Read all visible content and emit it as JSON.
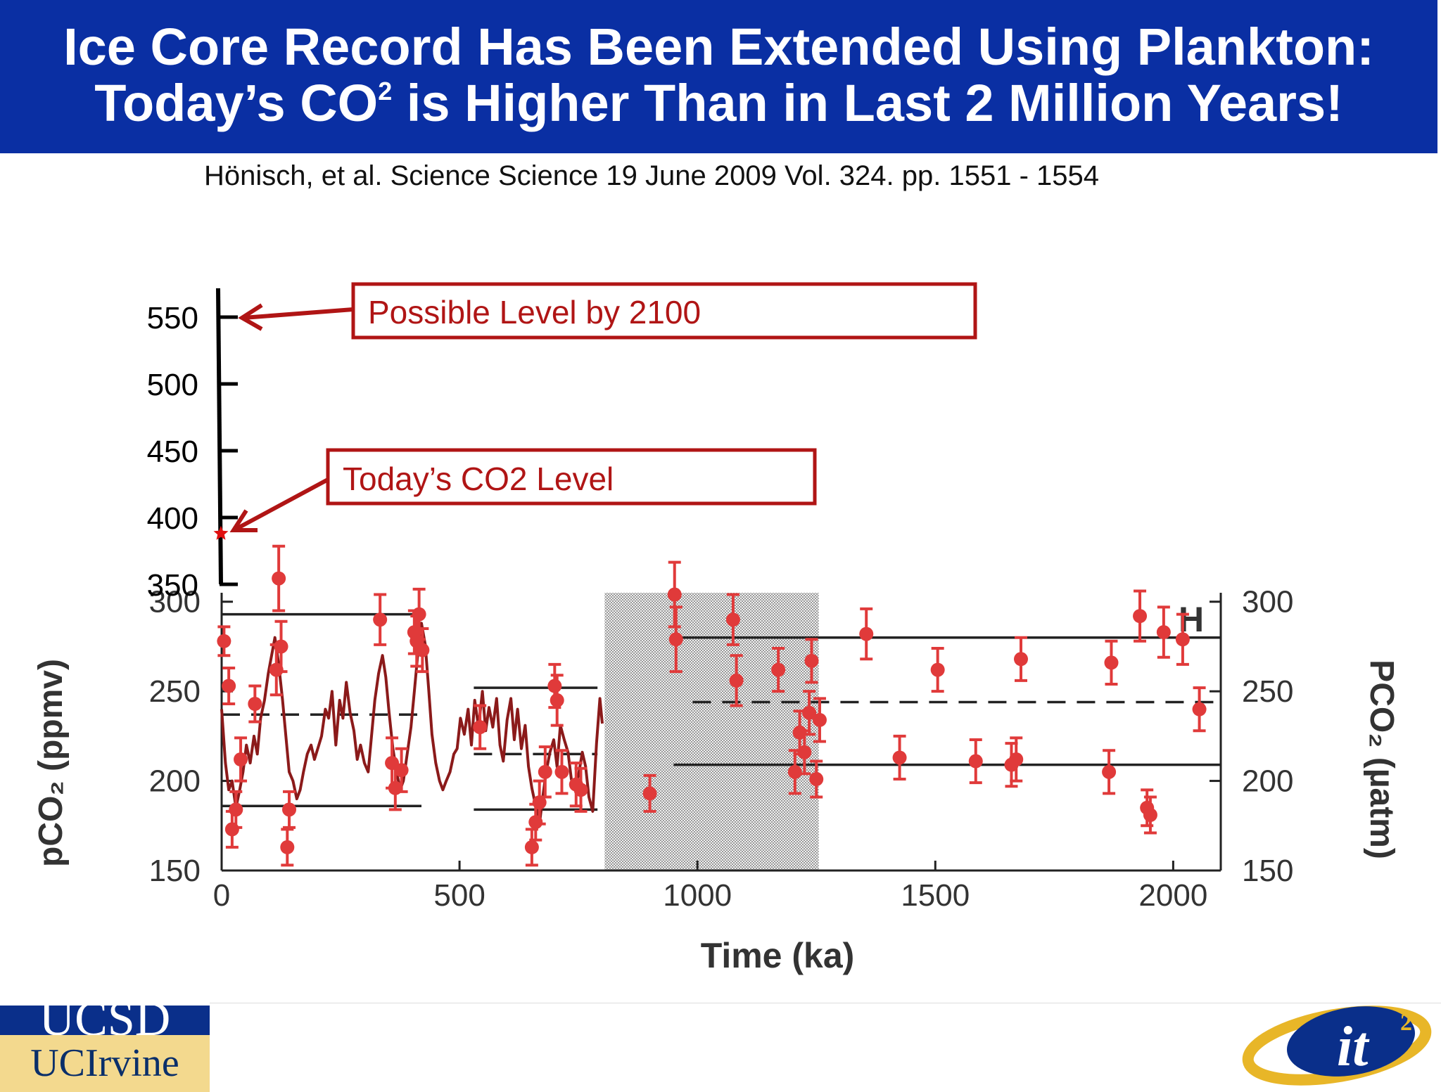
{
  "header": {
    "title_line1": "Ice Core Record Has Been Extended Using Plankton:",
    "title_line2_pre": "Today’s CO",
    "title_line2_sup": "2",
    "title_line2_post": " is Higher Than in Last 2 Million Years!"
  },
  "citation": "Hönisch, et al. Science Science 19 June 2009 Vol. 324. pp. 1551 - 1554",
  "annotations": {
    "possible_level": "Possible Level by 2100",
    "todays_level": "Today’s CO2 Level"
  },
  "logos": {
    "ucsd": "UCSD",
    "uci": "UCIrvine"
  },
  "colors": {
    "header_bg": "#0a2fa3",
    "data_red": "#e03a3a",
    "ice_core_line": "#8b1a1a",
    "annotation_red": "#b01515"
  },
  "chart_data": {
    "type": "scatter",
    "panel_label": "H",
    "xlabel": "Time (ka)",
    "ylabel_left": "pCO2 (ppmv)",
    "ylabel_right": "PCO2 (µatm)",
    "xlim": [
      0,
      2100
    ],
    "ylim": [
      150,
      305
    ],
    "x_ticks": [
      0,
      500,
      1000,
      1500,
      2000
    ],
    "y_ticks": [
      150,
      200,
      250,
      300
    ],
    "extended_axis_ticks": [
      350,
      400,
      450,
      500,
      550
    ],
    "today_co2": 388,
    "possible_2100": 550,
    "shaded_region": [
      805,
      1255
    ],
    "mean_lines": [
      {
        "style": "solid",
        "x": [
          0,
          420
        ],
        "y": 293
      },
      {
        "style": "dashed",
        "x": [
          0,
          420
        ],
        "y": 237
      },
      {
        "style": "solid",
        "x": [
          0,
          420
        ],
        "y": 186
      },
      {
        "style": "solid",
        "x": [
          530,
          790
        ],
        "y": 252
      },
      {
        "style": "dashed",
        "x": [
          530,
          790
        ],
        "y": 215
      },
      {
        "style": "solid",
        "x": [
          530,
          790
        ],
        "y": 184
      },
      {
        "style": "solid",
        "x": [
          960,
          2100
        ],
        "y": 280
      },
      {
        "style": "dashed",
        "x": [
          990,
          2100
        ],
        "y": 244
      },
      {
        "style": "solid",
        "x": [
          950,
          2100
        ],
        "y": 209
      }
    ],
    "ice_core_series": {
      "name": "",
      "x": [
        0,
        8,
        15,
        22,
        30,
        38,
        45,
        52,
        60,
        68,
        75,
        82,
        90,
        98,
        105,
        112,
        120,
        128,
        135,
        142,
        150,
        158,
        165,
        172,
        180,
        188,
        195,
        202,
        210,
        218,
        225,
        232,
        240,
        248,
        255,
        262,
        270,
        278,
        285,
        292,
        300,
        308,
        315,
        322,
        330,
        338,
        345,
        352,
        360,
        368,
        375,
        382,
        390,
        398,
        405,
        412,
        420,
        428,
        435,
        442,
        450,
        458,
        465,
        472,
        480,
        488,
        495,
        502,
        510,
        518,
        525,
        532,
        540,
        548,
        555,
        562,
        570,
        578,
        585,
        592,
        600,
        608,
        615,
        622,
        630,
        638,
        645,
        652,
        660,
        668,
        675,
        682,
        690,
        698,
        705,
        712,
        720,
        728,
        735,
        742,
        750,
        758,
        765,
        772,
        780,
        788,
        795,
        800
      ],
      "y": [
        240,
        210,
        195,
        200,
        185,
        195,
        205,
        220,
        210,
        225,
        215,
        235,
        245,
        260,
        270,
        280,
        265,
        245,
        225,
        205,
        200,
        190,
        195,
        205,
        215,
        220,
        212,
        218,
        225,
        240,
        235,
        250,
        220,
        245,
        235,
        255,
        238,
        228,
        212,
        220,
        210,
        205,
        225,
        245,
        260,
        270,
        258,
        238,
        218,
        205,
        195,
        200,
        215,
        230,
        250,
        270,
        288,
        276,
        252,
        226,
        210,
        200,
        195,
        200,
        205,
        215,
        218,
        235,
        226,
        240,
        220,
        245,
        230,
        250,
        228,
        241,
        230,
        246,
        220,
        211,
        234,
        246,
        223,
        240,
        218,
        231,
        208,
        196,
        186,
        176,
        191,
        205,
        216,
        223,
        208,
        231,
        223,
        216,
        201,
        196,
        203,
        216,
        208,
        191,
        183,
        221,
        246,
        232
      ]
    },
    "proxy_series": {
      "name": "",
      "points": [
        {
          "x": 5,
          "y": 278,
          "err": 8
        },
        {
          "x": 15,
          "y": 253,
          "err": 10
        },
        {
          "x": 22,
          "y": 173,
          "err": 10
        },
        {
          "x": 30,
          "y": 184,
          "err": 10
        },
        {
          "x": 40,
          "y": 212,
          "err": 12
        },
        {
          "x": 70,
          "y": 243,
          "err": 10
        },
        {
          "x": 115,
          "y": 262,
          "err": 14
        },
        {
          "x": 120,
          "y": 313,
          "err": 18
        },
        {
          "x": 125,
          "y": 275,
          "err": 14
        },
        {
          "x": 138,
          "y": 163,
          "err": 10
        },
        {
          "x": 142,
          "y": 184,
          "err": 10
        },
        {
          "x": 333,
          "y": 290,
          "err": 14
        },
        {
          "x": 358,
          "y": 210,
          "err": 14
        },
        {
          "x": 365,
          "y": 196,
          "err": 12
        },
        {
          "x": 378,
          "y": 206,
          "err": 12
        },
        {
          "x": 405,
          "y": 283,
          "err": 12
        },
        {
          "x": 410,
          "y": 278,
          "err": 14
        },
        {
          "x": 415,
          "y": 293,
          "err": 14
        },
        {
          "x": 422,
          "y": 273,
          "err": 12
        },
        {
          "x": 543,
          "y": 230,
          "err": 12
        },
        {
          "x": 652,
          "y": 163,
          "err": 10
        },
        {
          "x": 660,
          "y": 177,
          "err": 10
        },
        {
          "x": 668,
          "y": 188,
          "err": 12
        },
        {
          "x": 680,
          "y": 205,
          "err": 14
        },
        {
          "x": 700,
          "y": 253,
          "err": 12
        },
        {
          "x": 705,
          "y": 245,
          "err": 14
        },
        {
          "x": 715,
          "y": 205,
          "err": 12
        },
        {
          "x": 745,
          "y": 198,
          "err": 12
        },
        {
          "x": 755,
          "y": 195,
          "err": 12
        },
        {
          "x": 900,
          "y": 193,
          "err": 10
        },
        {
          "x": 952,
          "y": 304,
          "err": 18
        },
        {
          "x": 955,
          "y": 279,
          "err": 18
        },
        {
          "x": 1075,
          "y": 290,
          "err": 14
        },
        {
          "x": 1082,
          "y": 256,
          "err": 14
        },
        {
          "x": 1170,
          "y": 262,
          "err": 12
        },
        {
          "x": 1205,
          "y": 205,
          "err": 12
        },
        {
          "x": 1215,
          "y": 227,
          "err": 12
        },
        {
          "x": 1225,
          "y": 216,
          "err": 12
        },
        {
          "x": 1235,
          "y": 238,
          "err": 12
        },
        {
          "x": 1240,
          "y": 267,
          "err": 12
        },
        {
          "x": 1250,
          "y": 201,
          "err": 10
        },
        {
          "x": 1257,
          "y": 234,
          "err": 12
        },
        {
          "x": 1355,
          "y": 282,
          "err": 14
        },
        {
          "x": 1425,
          "y": 213,
          "err": 12
        },
        {
          "x": 1505,
          "y": 262,
          "err": 12
        },
        {
          "x": 1585,
          "y": 211,
          "err": 12
        },
        {
          "x": 1660,
          "y": 209,
          "err": 12
        },
        {
          "x": 1670,
          "y": 212,
          "err": 12
        },
        {
          "x": 1680,
          "y": 268,
          "err": 12
        },
        {
          "x": 1865,
          "y": 205,
          "err": 12
        },
        {
          "x": 1870,
          "y": 266,
          "err": 12
        },
        {
          "x": 1930,
          "y": 292,
          "err": 14
        },
        {
          "x": 1945,
          "y": 185,
          "err": 10
        },
        {
          "x": 1952,
          "y": 181,
          "err": 10
        },
        {
          "x": 1980,
          "y": 283,
          "err": 14
        },
        {
          "x": 2020,
          "y": 279,
          "err": 14
        },
        {
          "x": 2055,
          "y": 240,
          "err": 12
        }
      ]
    }
  }
}
